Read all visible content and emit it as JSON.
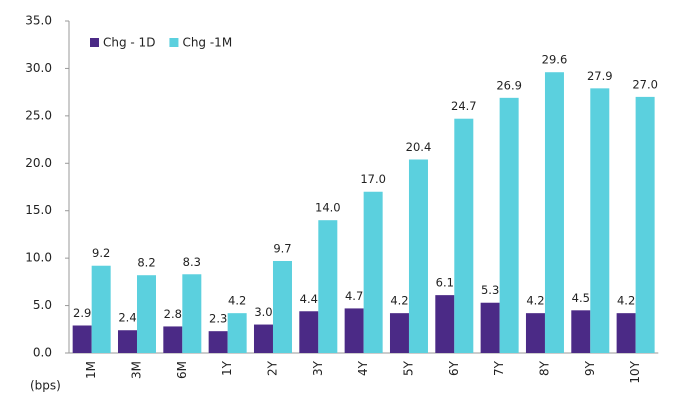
{
  "chart_data": {
    "type": "bar",
    "categories": [
      "1M",
      "3M",
      "6M",
      "1Y",
      "2Y",
      "3Y",
      "4Y",
      "5Y",
      "6Y",
      "7Y",
      "8Y",
      "9Y",
      "10Y"
    ],
    "series": [
      {
        "name": "Chg - 1D",
        "color": "#4b2a86",
        "values": [
          2.9,
          2.4,
          2.8,
          2.3,
          3.0,
          4.4,
          4.7,
          4.2,
          6.1,
          5.3,
          4.2,
          4.5,
          4.2
        ],
        "value_labels": [
          "2.9",
          "2.4",
          "2.8",
          "2.3",
          "3.0",
          "4.4",
          "4.7",
          "4.2",
          "6.1",
          "5.3",
          "4.2",
          "4.5",
          "4.2"
        ]
      },
      {
        "name": "Chg -1M",
        "color": "#5bd0de",
        "values": [
          9.2,
          8.2,
          8.3,
          4.2,
          9.7,
          14.0,
          17.0,
          20.4,
          24.7,
          26.9,
          29.6,
          27.9,
          27.0
        ],
        "value_labels": [
          "9.2",
          "8.2",
          "8.3",
          "4.2",
          "9.7",
          "14.0",
          "17.0",
          "20.4",
          "24.7",
          "26.9",
          "29.6",
          "27.9",
          "27.0"
        ]
      }
    ],
    "y_label": "(bps)",
    "ylim": [
      0,
      35
    ],
    "yticks": [
      {
        "value": 0,
        "label": "0.0"
      },
      {
        "value": 5,
        "label": "5.0"
      },
      {
        "value": 10,
        "label": "10.0"
      },
      {
        "value": 15,
        "label": "15.0"
      },
      {
        "value": 20,
        "label": "20.0"
      },
      {
        "value": 25,
        "label": "25.0"
      },
      {
        "value": 30,
        "label": "30.0"
      },
      {
        "value": 35,
        "label": "35.0"
      }
    ],
    "legend": "top-left"
  }
}
